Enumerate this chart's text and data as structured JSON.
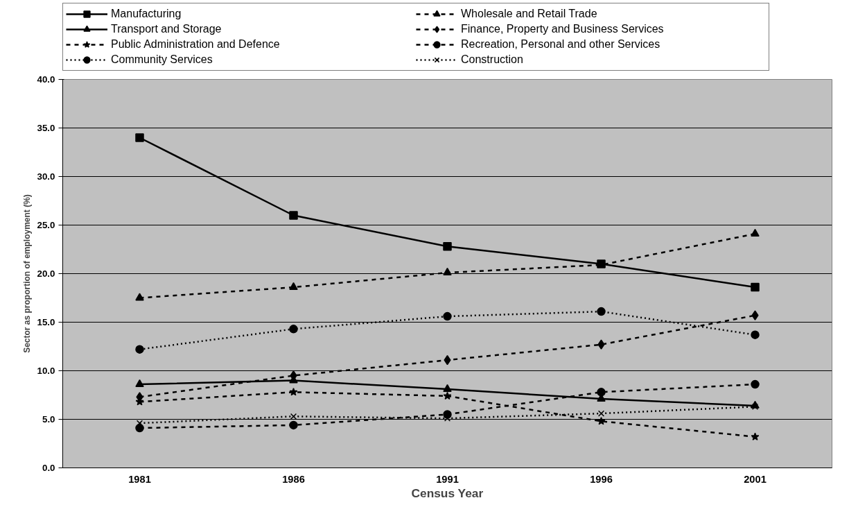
{
  "chart_data": {
    "type": "line",
    "xlabel": "Census Year",
    "ylabel": "Sector as proportion of employment (%)",
    "categories": [
      "1981",
      "1986",
      "1991",
      "1996",
      "2001"
    ],
    "ylim": [
      0,
      40
    ],
    "yticks": [
      {
        "value": 0,
        "label": "0.0"
      },
      {
        "value": 5,
        "label": "5.0"
      },
      {
        "value": 10,
        "label": "10.0"
      },
      {
        "value": 15,
        "label": "15.0"
      },
      {
        "value": 20,
        "label": "20.0"
      },
      {
        "value": 25,
        "label": "25.0"
      },
      {
        "value": 30,
        "label": "30.0"
      },
      {
        "value": 35,
        "label": "35.0"
      },
      {
        "value": 40,
        "label": "40.0"
      }
    ],
    "grid": "y",
    "legend": "top",
    "series": [
      {
        "name": "Manufacturing",
        "color": "#000000",
        "marker": "square",
        "line_style": "solid",
        "values": [
          34.0,
          26.0,
          22.8,
          21.0,
          18.6
        ]
      },
      {
        "name": "Wholesale and Retail Trade",
        "color": "#000000",
        "marker": "triangle",
        "line_style": "dashed",
        "values": [
          17.5,
          18.6,
          20.1,
          20.9,
          24.1
        ]
      },
      {
        "name": "Transport and Storage",
        "color": "#000000",
        "marker": "triangle",
        "line_style": "solid",
        "values": [
          8.6,
          9.0,
          8.1,
          7.1,
          6.4
        ]
      },
      {
        "name": "Finance, Property and Business Services",
        "color": "#000000",
        "marker": "diamond",
        "line_style": "dashed",
        "values": [
          7.3,
          9.5,
          11.1,
          12.7,
          15.7
        ]
      },
      {
        "name": "Public Administration and Defence",
        "color": "#000000",
        "marker": "star",
        "line_style": "dashed",
        "values": [
          6.8,
          7.8,
          7.4,
          4.8,
          3.2
        ]
      },
      {
        "name": "Recreation, Personal and other Services",
        "color": "#000000",
        "marker": "circle",
        "line_style": "dashed",
        "values": [
          4.1,
          4.4,
          5.5,
          7.8,
          8.6
        ]
      },
      {
        "name": "Community Services",
        "color": "#000000",
        "marker": "circle",
        "line_style": "dotted",
        "values": [
          12.2,
          14.3,
          15.6,
          16.1,
          13.7
        ]
      },
      {
        "name": "Construction",
        "color": "#000000",
        "marker": "cross",
        "line_style": "dotted",
        "values": [
          4.6,
          5.3,
          5.1,
          5.6,
          6.3
        ]
      }
    ]
  }
}
